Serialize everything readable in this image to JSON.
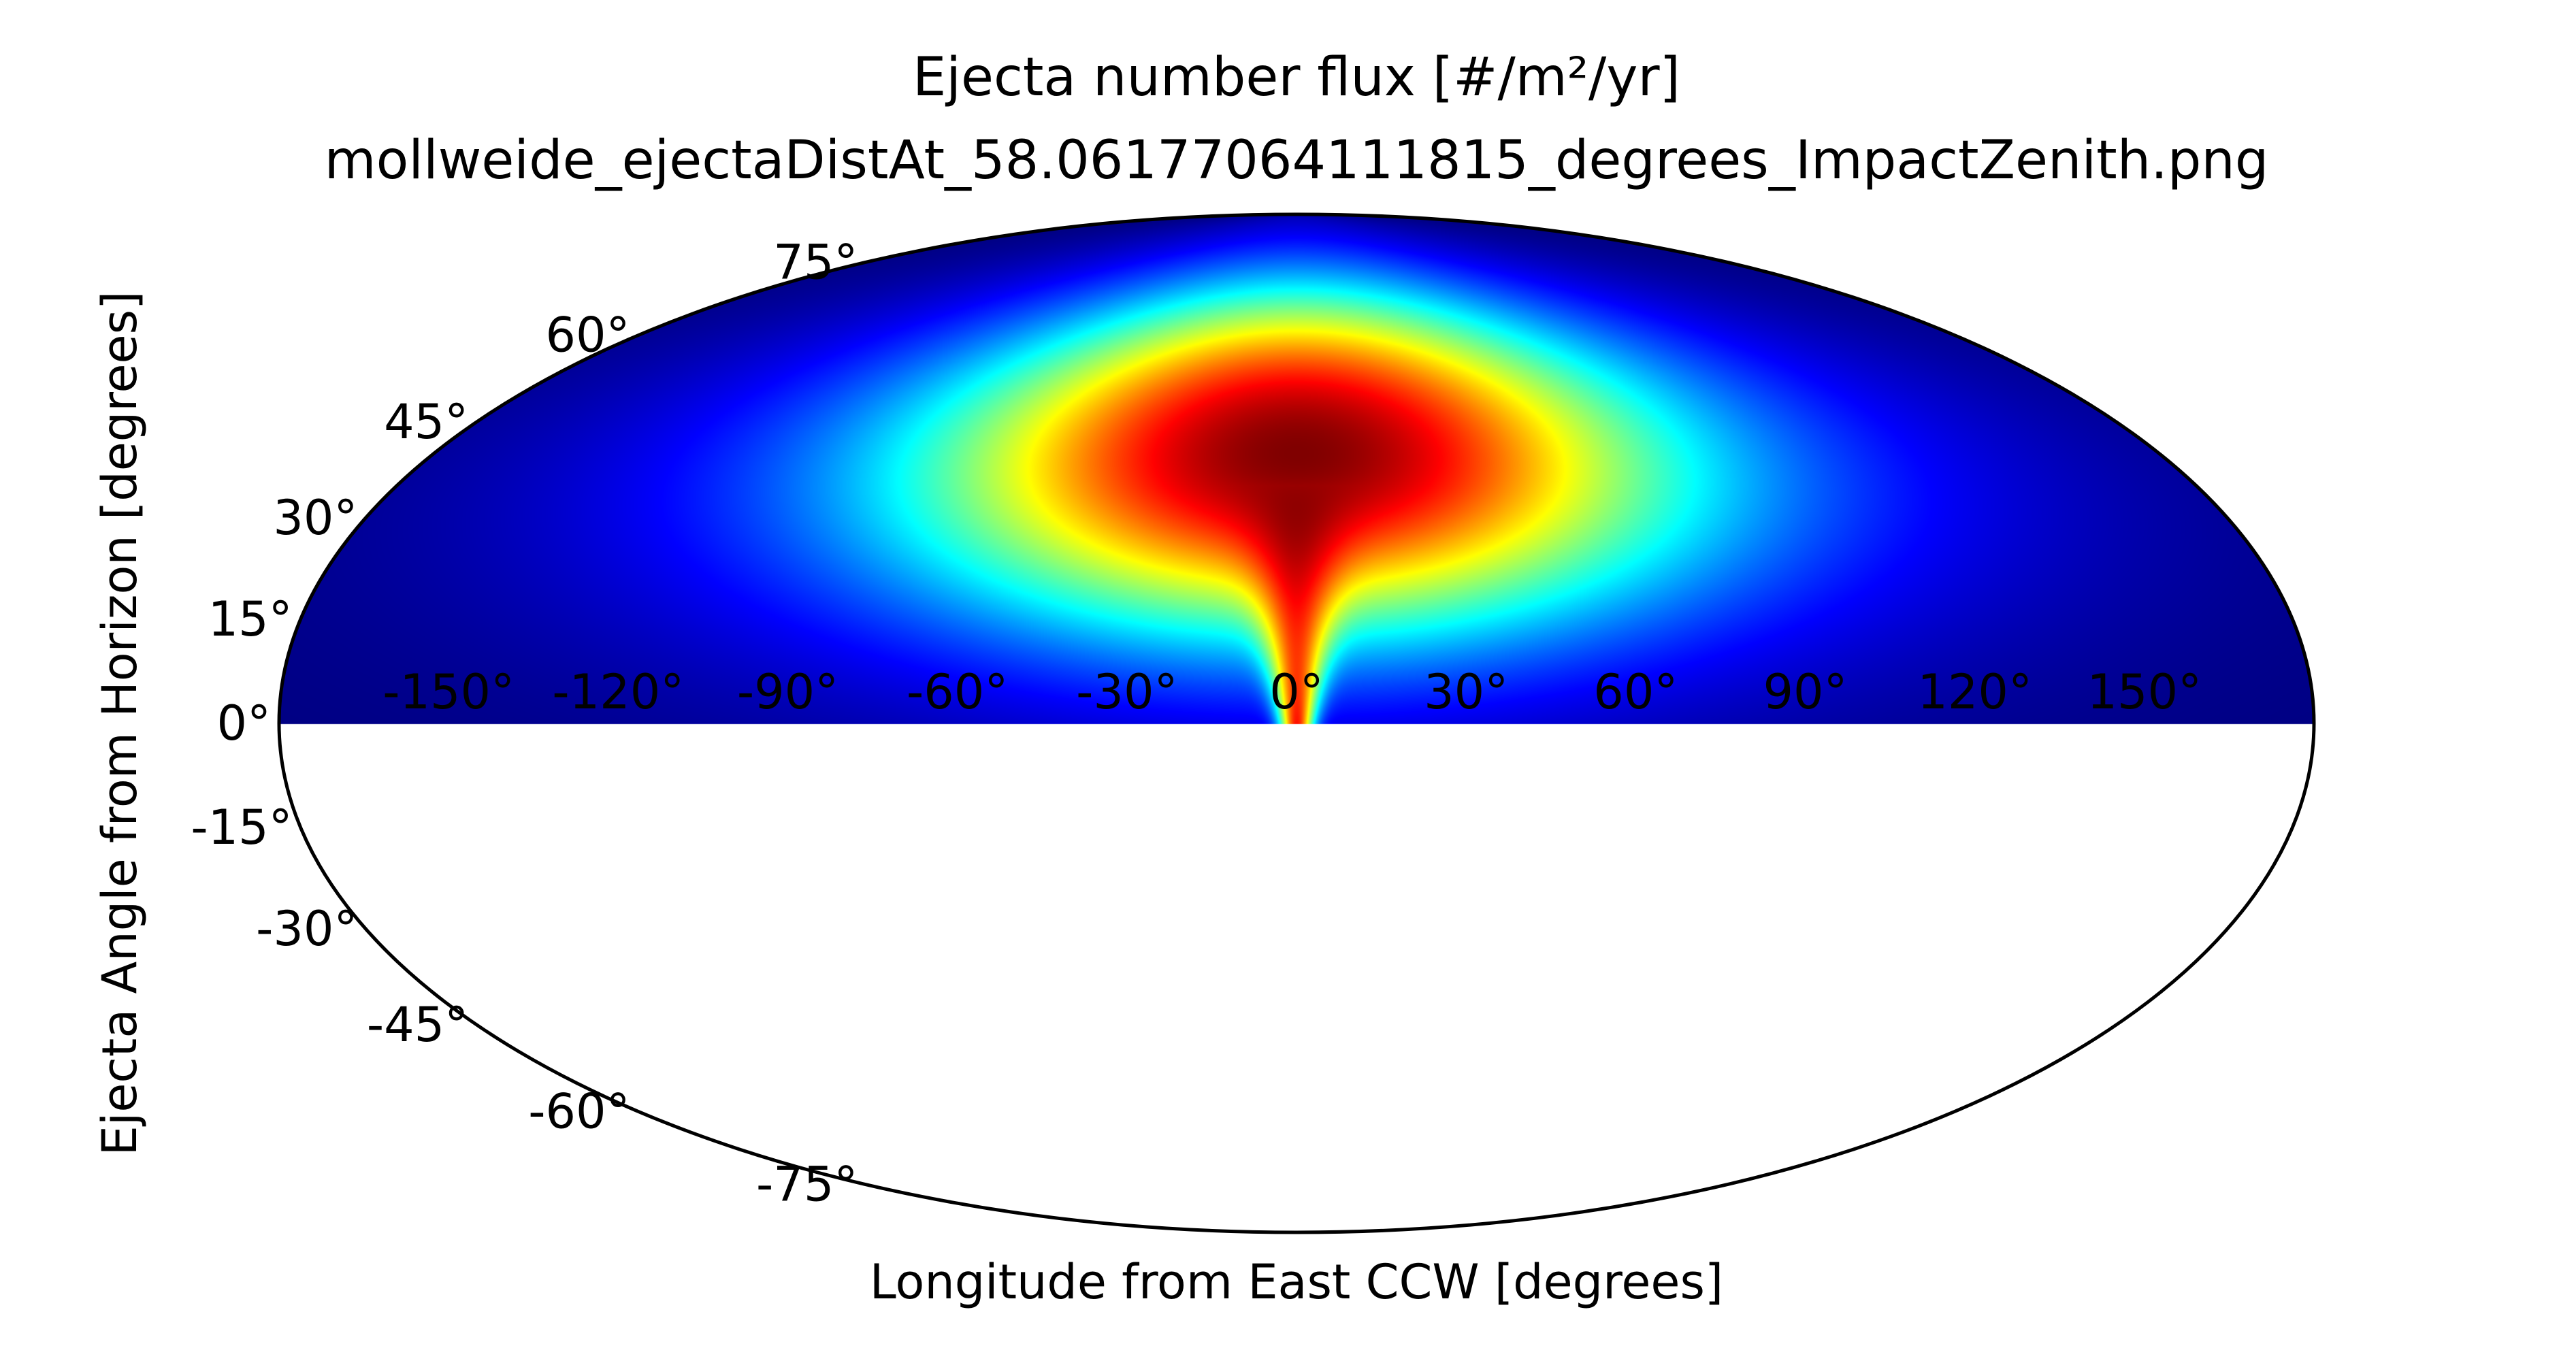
{
  "chart_data": {
    "type": "heatmap",
    "projection": "mollweide",
    "title": "Ejecta number flux [#/m²/yr]",
    "subtitle": "mollweide_ejectaDistAt_58.06177064111815_degrees_ImpactZenith.png",
    "xlabel": "Longitude from East CCW [degrees]",
    "ylabel": "Ejecta Angle from Horizon [degrees]",
    "xlim": [
      -180,
      180
    ],
    "ylim": [
      -90,
      90
    ],
    "colormap": "jet",
    "grid": false,
    "x_ticks": [
      -150,
      -120,
      -90,
      -60,
      -30,
      0,
      30,
      60,
      90,
      120,
      150
    ],
    "y_ticks": [
      75,
      60,
      45,
      30,
      15,
      0,
      -15,
      -30,
      -45,
      -60,
      -75
    ],
    "x_tick_labels": [
      "-150°",
      "-120°",
      "-90°",
      "-60°",
      "-30°",
      "0°",
      "30°",
      "60°",
      "90°",
      "120°",
      "150°"
    ],
    "y_tick_labels": [
      "75°",
      "60°",
      "45°",
      "30°",
      "15°",
      "0°",
      "-15°",
      "-30°",
      "-45°",
      "-60°",
      "-75°"
    ],
    "data_extent": {
      "lon": [
        -180,
        180
      ],
      "lat": [
        0,
        90
      ]
    },
    "peak": {
      "lon": 0,
      "lat": 40
    },
    "field_description": "relative flux, normalized 0-1; peak at longitude 0, latitude ~40; falls toward 0 beyond |lon| ~120 and near the horizon except a narrow high band at lon 0",
    "colors": {
      "outline": "#000000",
      "background": "#ffffff"
    }
  }
}
